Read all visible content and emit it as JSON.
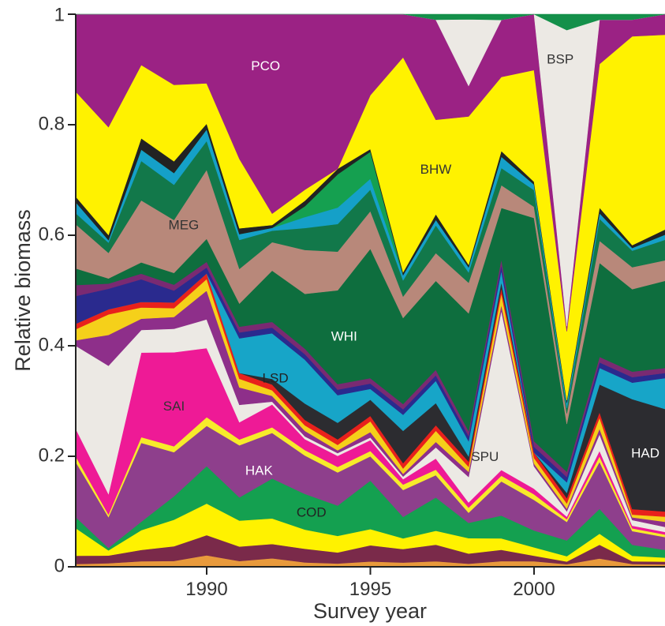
{
  "chart_data": {
    "type": "area",
    "stacked": true,
    "normalized": true,
    "title": "",
    "xlabel": "Survey year",
    "ylabel": "Relative biomass",
    "xlim": [
      1986,
      2004
    ],
    "ylim": [
      0,
      1
    ],
    "x_ticks": [
      1990,
      1995,
      2000
    ],
    "y_ticks": [
      0,
      0.2,
      0.4,
      0.6,
      0.8,
      1
    ],
    "y_tick_labels": [
      "0",
      "0.2",
      "0.4",
      "0.6",
      "0.8",
      "1"
    ],
    "grid": false,
    "legend": "none (labels on areas)",
    "x": [
      1986,
      1987,
      1988,
      1989,
      1990,
      1991,
      1992,
      1993,
      1994,
      1995,
      1996,
      1997,
      1998,
      1999,
      2000,
      2001,
      2002,
      2003,
      2004
    ],
    "series": [
      {
        "label": "",
        "color": "#E89A3C",
        "values": [
          0.005,
          0.007,
          0.01,
          0.01,
          0.02,
          0.01,
          0.015,
          0.008,
          0.006,
          0.01,
          0.008,
          0.01,
          0.006,
          0.01,
          0.01,
          0.005,
          0.015,
          0.005,
          0.005
        ]
      },
      {
        "label": "",
        "color": "#7A2A4A",
        "values": [
          0.015,
          0.015,
          0.02,
          0.025,
          0.035,
          0.025,
          0.025,
          0.025,
          0.02,
          0.03,
          0.025,
          0.03,
          0.02,
          0.02,
          0.01,
          0.005,
          0.025,
          0.005,
          0.005
        ]
      },
      {
        "label": "",
        "color": "#FFF200",
        "values": [
          0.05,
          0.01,
          0.035,
          0.045,
          0.055,
          0.045,
          0.045,
          0.035,
          0.03,
          0.03,
          0.02,
          0.025,
          0.03,
          0.02,
          0.015,
          0.01,
          0.02,
          0.01,
          0.008
        ]
      },
      {
        "label": "COD",
        "color": "#14A050",
        "values": [
          0.02,
          0.005,
          0.015,
          0.04,
          0.065,
          0.04,
          0.07,
          0.065,
          0.055,
          0.09,
          0.04,
          0.06,
          0.03,
          0.04,
          0.03,
          0.03,
          0.045,
          0.02,
          0.015
        ]
      },
      {
        "label": "HAK",
        "color": "#8E3F8C",
        "values": [
          0.1,
          0.06,
          0.14,
          0.075,
          0.07,
          0.09,
          0.08,
          0.07,
          0.06,
          0.045,
          0.05,
          0.04,
          0.02,
          0.06,
          0.055,
          0.035,
          0.085,
          0.025,
          0.025
        ]
      },
      {
        "label": "",
        "color": "#F7EB2A",
        "values": [
          0.01,
          0.005,
          0.01,
          0.01,
          0.015,
          0.01,
          0.01,
          0.01,
          0.01,
          0.01,
          0.01,
          0.01,
          0.01,
          0.01,
          0.01,
          0.005,
          0.01,
          0.005,
          0.005
        ]
      },
      {
        "label": "SAI",
        "color": "#EE1A96",
        "values": [
          0.05,
          0.04,
          0.15,
          0.16,
          0.12,
          0.03,
          0.04,
          0.02,
          0.02,
          0.02,
          0.01,
          0.02,
          0.01,
          0.01,
          0.01,
          0.005,
          0.01,
          0.005,
          0.005
        ]
      },
      {
        "label": "SPU",
        "color": "#ECE9E4",
        "values": [
          0.15,
          0.25,
          0.04,
          0.04,
          0.05,
          0.03,
          0.005,
          0.005,
          0.005,
          0.005,
          0.005,
          0.02,
          0.05,
          0.28,
          0.04,
          0.01,
          0.03,
          0.01,
          0.01
        ]
      },
      {
        "label": "",
        "color": "#8E2F8A",
        "values": [
          0.01,
          0.06,
          0.02,
          0.02,
          0.05,
          0.03,
          0.01,
          0.01,
          0.005,
          0.01,
          0.005,
          0.01,
          0.01,
          0.01,
          0.005,
          0.005,
          0.01,
          0.005,
          0.01
        ]
      },
      {
        "label": "",
        "color": "#F5D01A",
        "values": [
          0.02,
          0.04,
          0.02,
          0.015,
          0.02,
          0.015,
          0.01,
          0.01,
          0.01,
          0.02,
          0.01,
          0.02,
          0.01,
          0.02,
          0.01,
          0.01,
          0.02,
          0.005,
          0.01
        ]
      },
      {
        "label": "",
        "color": "#E8211C",
        "values": [
          0.01,
          0.01,
          0.01,
          0.01,
          0.01,
          0.01,
          0.01,
          0.01,
          0.01,
          0.01,
          0.01,
          0.01,
          0.01,
          0.01,
          0.01,
          0.01,
          0.01,
          0.01,
          0.01
        ]
      },
      {
        "label": "HAD",
        "color": "#2C2C30",
        "values": [
          0.0,
          0.0,
          0.0,
          0.0,
          0.0,
          0.0,
          0.01,
          0.03,
          0.03,
          0.03,
          0.06,
          0.04,
          0.01,
          0.01,
          0.0,
          0.01,
          0.05,
          0.2,
          0.2
        ]
      },
      {
        "label": "LSD",
        "color": "#17A5C8",
        "values": [
          0.0,
          0.0,
          0.0,
          0.0,
          0.0,
          0.06,
          0.08,
          0.08,
          0.05,
          0.02,
          0.03,
          0.04,
          0.03,
          0.02,
          0.0,
          0.02,
          0.03,
          0.03,
          0.06
        ]
      },
      {
        "label": "",
        "color": "#2A2A8E",
        "values": [
          0.05,
          0.04,
          0.04,
          0.02,
          0.01,
          0.01,
          0.01,
          0.01,
          0.01,
          0.01,
          0.01,
          0.01,
          0.01,
          0.01,
          0.01,
          0.01,
          0.01,
          0.01,
          0.01
        ]
      },
      {
        "label": "",
        "color": "#7A2A72",
        "values": [
          0.02,
          0.01,
          0.01,
          0.01,
          0.01,
          0.01,
          0.01,
          0.01,
          0.01,
          0.01,
          0.01,
          0.01,
          0.01,
          0.01,
          0.01,
          0.01,
          0.01,
          0.01,
          0.01
        ]
      },
      {
        "label": "WHI",
        "color": "#0E6E3E",
        "values": [
          0.03,
          0.01,
          0.02,
          0.02,
          0.04,
          0.04,
          0.09,
          0.1,
          0.17,
          0.24,
          0.16,
          0.16,
          0.23,
          0.09,
          0.4,
          0.09,
          0.17,
          0.15,
          0.17
        ]
      },
      {
        "label": "MEG",
        "color": "#B8887A",
        "values": [
          0.08,
          0.05,
          0.11,
          0.09,
          0.12,
          0.06,
          0.05,
          0.08,
          0.07,
          0.07,
          0.04,
          0.05,
          0.06,
          0.04,
          0.02,
          0.02,
          0.04,
          0.04,
          0.04
        ]
      },
      {
        "label": "",
        "color": "#12784A",
        "values": [
          0.02,
          0.02,
          0.07,
          0.06,
          0.05,
          0.05,
          0.02,
          0.04,
          0.05,
          0.04,
          0.03,
          0.05,
          0.02,
          0.03,
          0.03,
          0.01,
          0.04,
          0.03,
          0.04
        ]
      },
      {
        "label": "",
        "color": "#15A0C8",
        "values": [
          0.02,
          0.005,
          0.02,
          0.02,
          0.02,
          0.01,
          0.005,
          0.02,
          0.03,
          0.02,
          0.01,
          0.01,
          0.01,
          0.02,
          0.01,
          0.01,
          0.01,
          0.005,
          0.01
        ]
      },
      {
        "label": "",
        "color": "#15A050",
        "values": [
          0.0,
          0.0,
          0.0,
          0.0,
          0.0,
          0.0,
          0.0,
          0.02,
          0.06,
          0.05,
          0.0,
          0.0,
          0.0,
          0.0,
          0.0,
          0.0,
          0.0,
          0.0,
          0.0
        ]
      },
      {
        "label": "",
        "color": "#222222",
        "values": [
          0.01,
          0.01,
          0.02,
          0.02,
          0.01,
          0.01,
          0.005,
          0.01,
          0.01,
          0.005,
          0.005,
          0.01,
          0.005,
          0.01,
          0.005,
          0.005,
          0.01,
          0.005,
          0.01
        ]
      },
      {
        "label": "BHW",
        "color": "#FFF200",
        "values": [
          0.19,
          0.21,
          0.13,
          0.13,
          0.07,
          0.12,
          0.02,
          0.02,
          0.0,
          0.1,
          0.4,
          0.17,
          0.29,
          0.13,
          0.2,
          0.13,
          0.26,
          0.38,
          0.38
        ]
      },
      {
        "label": "PCO",
        "color": "#9B2284",
        "values": [
          0.14,
          0.22,
          0.09,
          0.12,
          0.12,
          0.25,
          0.35,
          0.32,
          0.28,
          0.15,
          0.08,
          0.18,
          0.06,
          0.1,
          0.1,
          0.01,
          0.08,
          0.03,
          0.04
        ]
      },
      {
        "label": "BSP",
        "color": "#ECE9E4",
        "values": [
          0.0,
          0.0,
          0.0,
          0.0,
          0.0,
          0.0,
          0.0,
          0.0,
          0.0,
          0.0,
          0.0,
          0.0,
          0.13,
          0.0,
          0.0,
          0.56,
          0.0,
          0.0,
          0.0
        ]
      },
      {
        "label": "",
        "color": "#14904A",
        "values": [
          0.0,
          0.0,
          0.0,
          0.0,
          0.0,
          0.0,
          0.0,
          0.0,
          0.0,
          0.0,
          0.0,
          0.01,
          0.01,
          0.01,
          0.0,
          0.03,
          0.01,
          0.01,
          0.0
        ]
      }
    ],
    "area_labels": [
      {
        "text": "PCO",
        "x": 1991.8,
        "y": 0.905,
        "color": "#ffffff"
      },
      {
        "text": "BSP",
        "x": 2000.8,
        "y": 0.917,
        "color": "#333333"
      },
      {
        "text": "BHW",
        "x": 1997.0,
        "y": 0.718,
        "color": "#333333"
      },
      {
        "text": "MEG",
        "x": 1989.3,
        "y": 0.617,
        "color": "#333333"
      },
      {
        "text": "WHI",
        "x": 1994.2,
        "y": 0.416,
        "color": "#ffffff"
      },
      {
        "text": "LSD",
        "x": 1992.1,
        "y": 0.34,
        "color": "#222222"
      },
      {
        "text": "SAI",
        "x": 1989.0,
        "y": 0.289,
        "color": "#333333"
      },
      {
        "text": "SPU",
        "x": 1998.5,
        "y": 0.198,
        "color": "#333333"
      },
      {
        "text": "HAK",
        "x": 1991.6,
        "y": 0.173,
        "color": "#ffffff"
      },
      {
        "text": "COD",
        "x": 1993.2,
        "y": 0.097,
        "color": "#222222"
      },
      {
        "text": "HAD",
        "x": 2003.4,
        "y": 0.204,
        "color": "#ffffff"
      }
    ]
  }
}
